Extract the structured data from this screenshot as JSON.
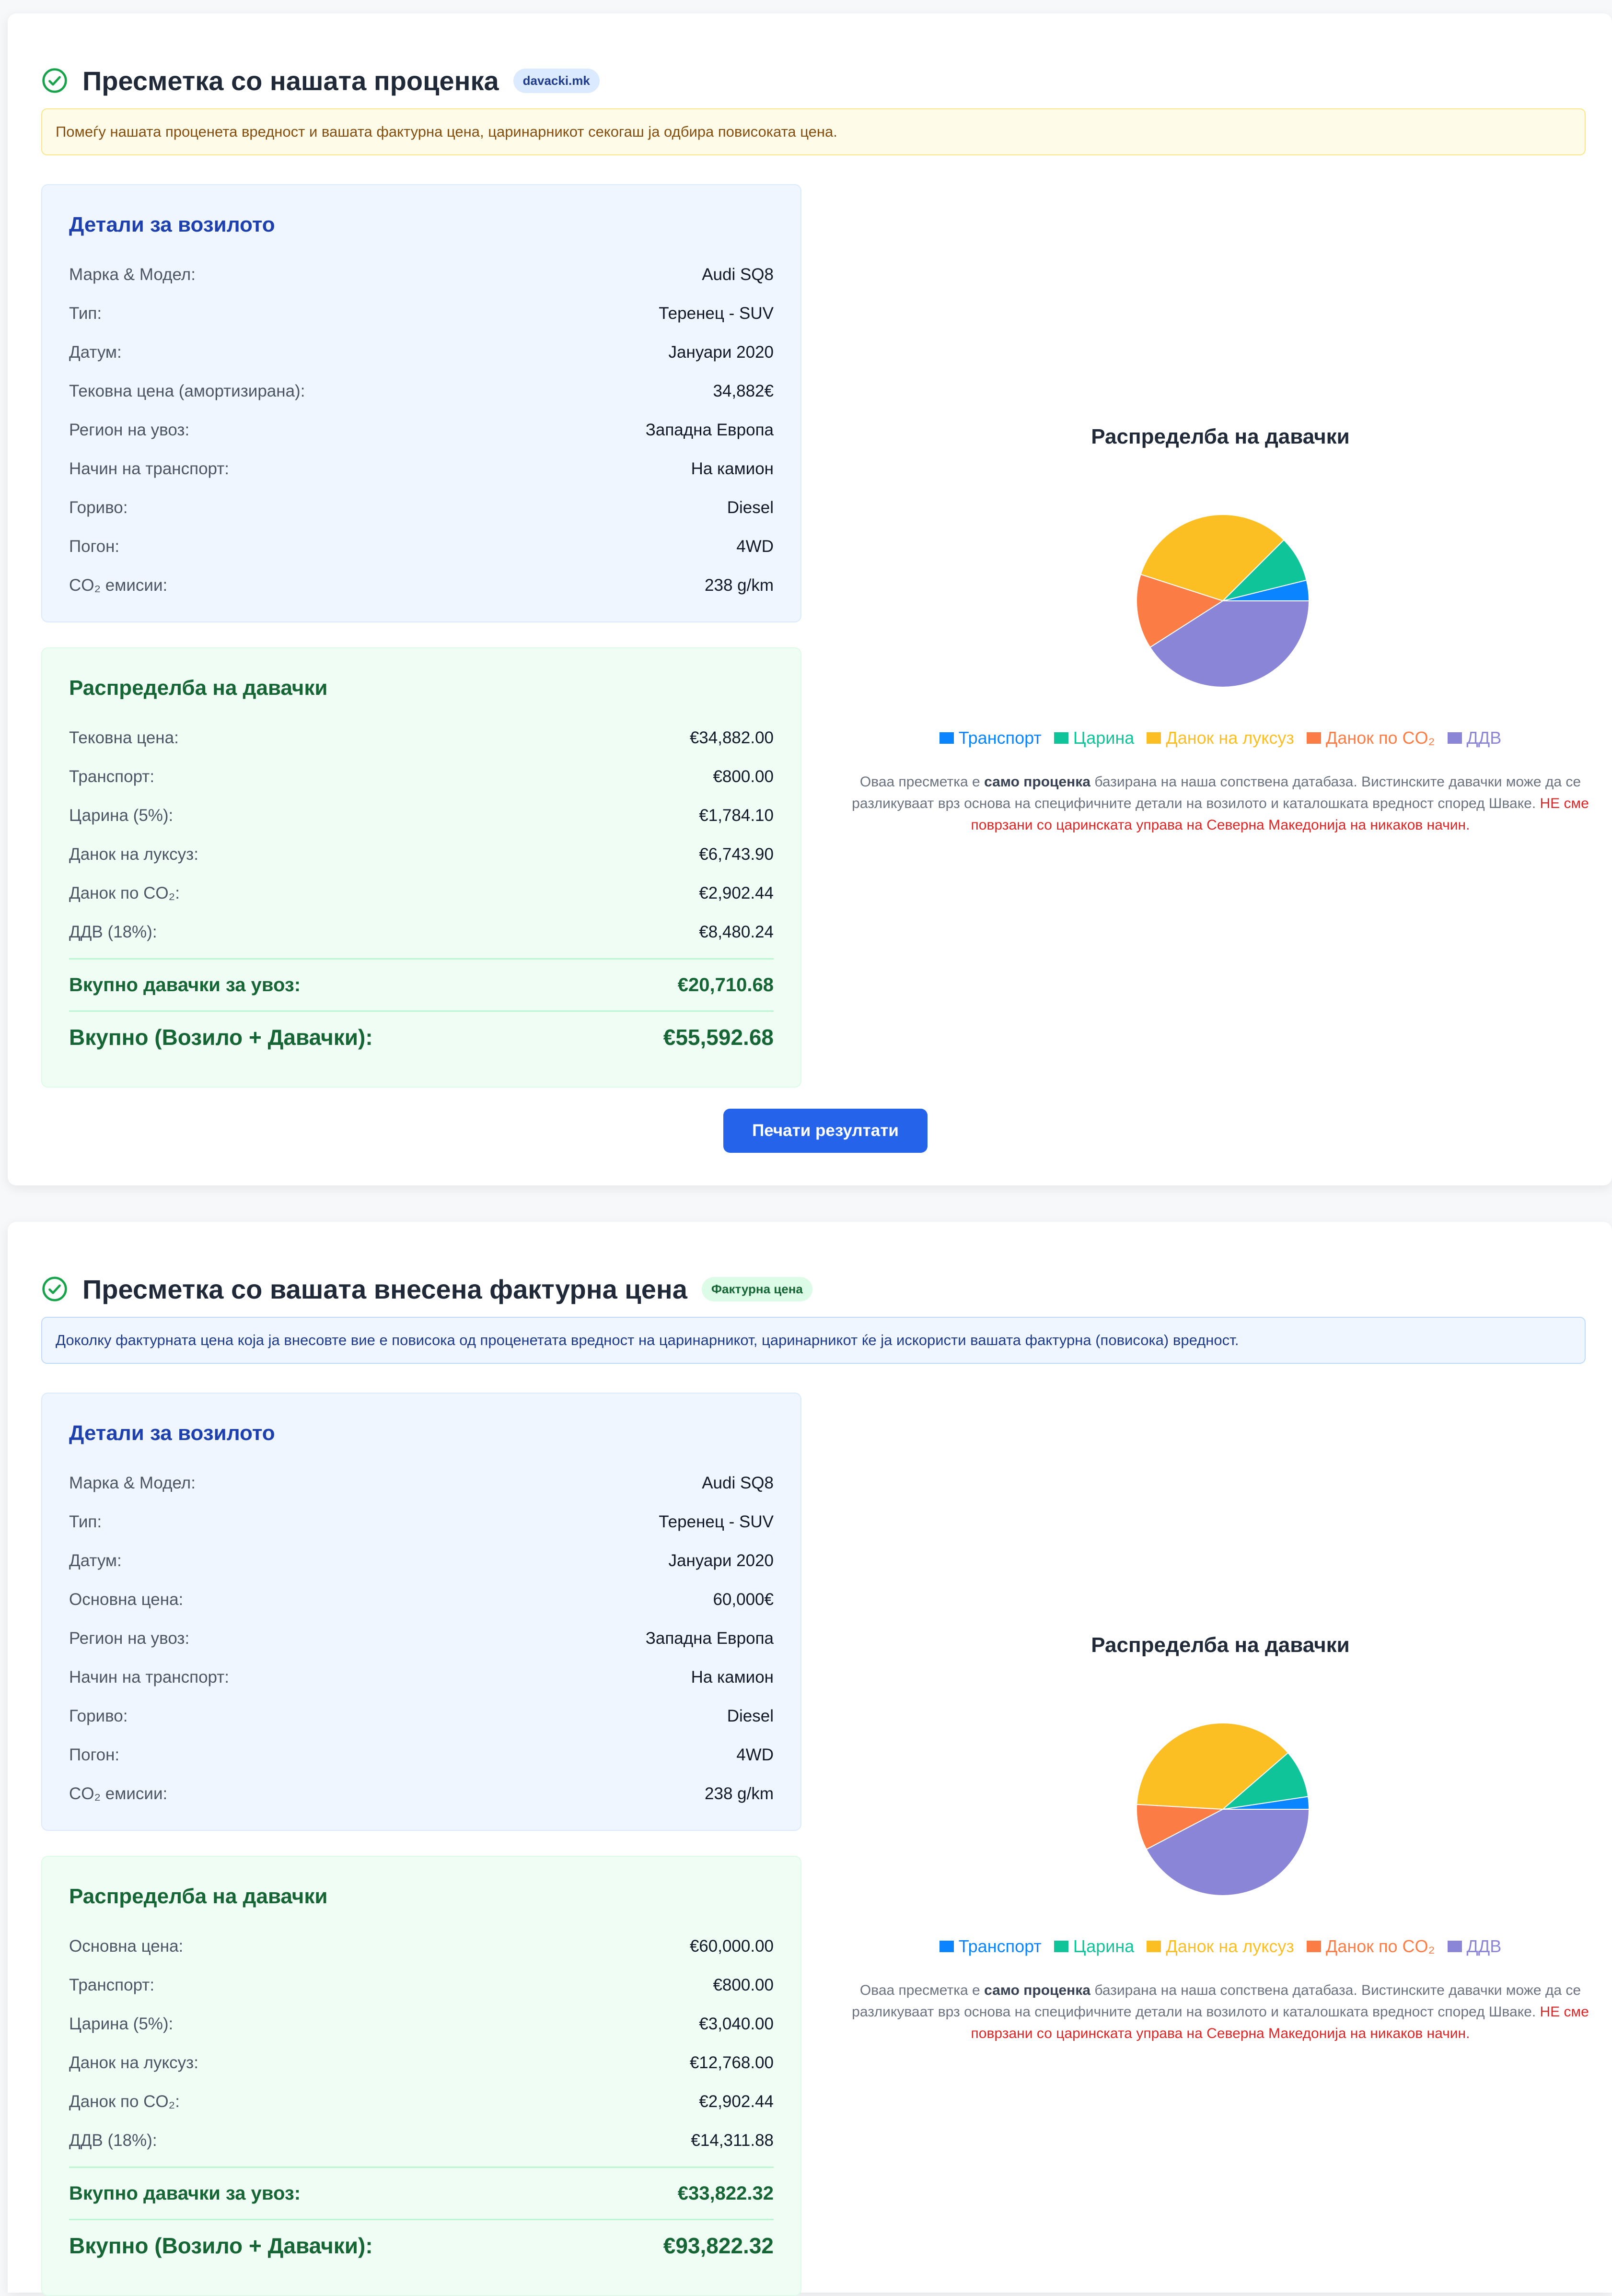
{
  "section1": {
    "title": "Пресметка со нашата проценка",
    "badge": "davacki.mk",
    "notice": "Помеѓу нашата проценета вредност и вашата фактурна цена, царинарникот секогаш ја одбира повисоката цена.",
    "details": {
      "title": "Детали за возилото",
      "rows": [
        {
          "label": "Марка & Модел:",
          "value": "Audi SQ8"
        },
        {
          "label": "Тип:",
          "value": "Теренец - SUV"
        },
        {
          "label": "Датум:",
          "value": "Јануари 2020"
        },
        {
          "label": "Тековна цена (амортизирана):",
          "value": "34,882€"
        },
        {
          "label": "Регион на увоз:",
          "value": "Западна Европа"
        },
        {
          "label": "Начин на транспорт:",
          "value": "На камион"
        },
        {
          "label": "Гориво:",
          "value": "Diesel"
        },
        {
          "label": "Погон:",
          "value": "4WD"
        },
        {
          "label": "CO₂ емисии:",
          "value": "238 g/km"
        }
      ]
    },
    "fees": {
      "title": "Распределба на давачки",
      "rows": [
        {
          "label": "Тековна цена:",
          "value": "€34,882.00"
        },
        {
          "label": "Транспорт:",
          "value": "€800.00"
        },
        {
          "label": "Царина (5%):",
          "value": "€1,784.10"
        },
        {
          "label": "Данок на луксуз:",
          "value": "€6,743.90"
        },
        {
          "label": "Данок по CO₂:",
          "value": "€2,902.44"
        },
        {
          "label": "ДДВ (18%):",
          "value": "€8,480.24"
        }
      ],
      "total_duties_label": "Вкупно давачки за увоз:",
      "total_duties_value": "€20,710.68",
      "grand_total_label": "Вкупно (Возило + Давачки):",
      "grand_total_value": "€55,592.68"
    },
    "chart_title": "Распределба на давачки",
    "print_button": "Печати резултати"
  },
  "section2": {
    "title": "Пресметка со вашата внесена фактурна цена",
    "badge": "Фактурна цена",
    "notice": "Доколку фактурната цена која ја внесовте вие е повисока од проценетата вредност на царинарникот, царинарникот ќе ја искористи вашата фактурна (повисока) вредност.",
    "details": {
      "title": "Детали за возилото",
      "rows": [
        {
          "label": "Марка & Модел:",
          "value": "Audi SQ8"
        },
        {
          "label": "Тип:",
          "value": "Теренец - SUV"
        },
        {
          "label": "Датум:",
          "value": "Јануари 2020"
        },
        {
          "label": "Основна цена:",
          "value": "60,000€"
        },
        {
          "label": "Регион на увоз:",
          "value": "Западна Европа"
        },
        {
          "label": "Начин на транспорт:",
          "value": "На камион"
        },
        {
          "label": "Гориво:",
          "value": "Diesel"
        },
        {
          "label": "Погон:",
          "value": "4WD"
        },
        {
          "label": "CO₂ емисии:",
          "value": "238 g/km"
        }
      ]
    },
    "fees": {
      "title": "Распределба на давачки",
      "rows": [
        {
          "label": "Основна цена:",
          "value": "€60,000.00"
        },
        {
          "label": "Транспорт:",
          "value": "€800.00"
        },
        {
          "label": "Царина (5%):",
          "value": "€3,040.00"
        },
        {
          "label": "Данок на луксуз:",
          "value": "€12,768.00"
        },
        {
          "label": "Данок по CO₂:",
          "value": "€2,902.44"
        },
        {
          "label": "ДДВ (18%):",
          "value": "€14,311.88"
        }
      ],
      "total_duties_label": "Вкупно давачки за увоз:",
      "total_duties_value": "€33,822.32",
      "grand_total_label": "Вкупно (Возило + Давачки):",
      "grand_total_value": "€93,822.32"
    },
    "chart_title": "Распределба на давачки"
  },
  "disclaimer": {
    "part1": "Оваа пресметка е ",
    "bold": "само проценка",
    "part2": " базирана на наша сопствена датабаза. Вистинските давачки може да се разликуваат врз основа на специфичните детали на возилото и каталошката вредност според Шваке. ",
    "red": "НЕ сме поврзани со царинската управа на Северна Македонија на никаков начин."
  },
  "colors": {
    "transport": "#0a84ff",
    "customs": "#10c49a",
    "luxury": "#fbbf24",
    "co2": "#fb7d45",
    "vat": "#8b85d8",
    "check": "#16a34a",
    "button": "#2563eb"
  },
  "chart_data": [
    {
      "type": "pie",
      "title": "Распределба на давачки",
      "categories": [
        "Транспорт",
        "Царина",
        "Данок на луксуз",
        "Данок по CO₂",
        "ДДВ"
      ],
      "values": [
        800.0,
        1784.1,
        6743.9,
        2902.44,
        8480.24
      ],
      "legend": "bottom"
    },
    {
      "type": "pie",
      "title": "Распределба на давачки",
      "categories": [
        "Транспорт",
        "Царина",
        "Данок на луксуз",
        "Данок по CO₂",
        "ДДВ"
      ],
      "values": [
        800.0,
        3040.0,
        12768.0,
        2902.44,
        14311.88
      ],
      "legend": "bottom"
    }
  ]
}
